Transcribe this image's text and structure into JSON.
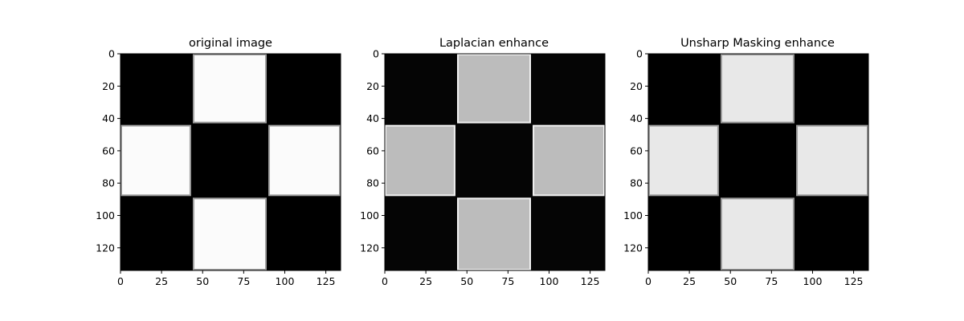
{
  "chart_data": [
    {
      "type": "heatmap",
      "title": "original image",
      "xlim": [
        0,
        134
      ],
      "ylim": [
        134,
        0
      ],
      "xticks": [
        "0",
        "25",
        "50",
        "75",
        "100",
        "125"
      ],
      "yticks": [
        "0",
        "20",
        "40",
        "60",
        "80",
        "100",
        "120"
      ],
      "xtick_values": [
        0,
        25,
        50,
        75,
        100,
        125
      ],
      "ytick_values": [
        0,
        20,
        40,
        60,
        80,
        100,
        120
      ],
      "grid": false,
      "colormap": "gray",
      "background_color": "#000000",
      "square_color": "#fbfbfb",
      "edge_color": "#a0a0a0",
      "blocks": [
        {
          "x0": 44,
          "x1": 89,
          "y0": 0,
          "y1": 43
        },
        {
          "x0": 0,
          "x1": 43,
          "y0": 44,
          "y1": 88
        },
        {
          "x0": 90,
          "x1": 134,
          "y0": 44,
          "y1": 88
        },
        {
          "x0": 44,
          "x1": 89,
          "y0": 89,
          "y1": 134
        }
      ]
    },
    {
      "type": "heatmap",
      "title": "Laplacian enhance",
      "xlim": [
        0,
        134
      ],
      "ylim": [
        134,
        0
      ],
      "xticks": [
        "0",
        "25",
        "50",
        "75",
        "100",
        "125"
      ],
      "yticks": [
        "0",
        "20",
        "40",
        "60",
        "80",
        "100",
        "120"
      ],
      "xtick_values": [
        0,
        25,
        50,
        75,
        100,
        125
      ],
      "ytick_values": [
        0,
        20,
        40,
        60,
        80,
        100,
        120
      ],
      "grid": false,
      "colormap": "gray",
      "background_color": "#050505",
      "square_color": "#bcbcbc",
      "edge_color": "#f2f2f2",
      "blocks": [
        {
          "x0": 44,
          "x1": 89,
          "y0": 0,
          "y1": 43
        },
        {
          "x0": 0,
          "x1": 43,
          "y0": 44,
          "y1": 88
        },
        {
          "x0": 90,
          "x1": 134,
          "y0": 44,
          "y1": 88
        },
        {
          "x0": 44,
          "x1": 89,
          "y0": 89,
          "y1": 134
        }
      ]
    },
    {
      "type": "heatmap",
      "title": "Unsharp Masking enhance",
      "xlim": [
        0,
        134
      ],
      "ylim": [
        134,
        0
      ],
      "xticks": [
        "0",
        "25",
        "50",
        "75",
        "100",
        "125"
      ],
      "yticks": [
        "0",
        "20",
        "40",
        "60",
        "80",
        "100",
        "120"
      ],
      "xtick_values": [
        0,
        25,
        50,
        75,
        100,
        125
      ],
      "ytick_values": [
        0,
        20,
        40,
        60,
        80,
        100,
        120
      ],
      "grid": false,
      "colormap": "gray",
      "background_color": "#000000",
      "square_color": "#e8e8e8",
      "edge_color": "#9a9a9a",
      "blocks": [
        {
          "x0": 44,
          "x1": 89,
          "y0": 0,
          "y1": 43
        },
        {
          "x0": 0,
          "x1": 43,
          "y0": 44,
          "y1": 88
        },
        {
          "x0": 90,
          "x1": 134,
          "y0": 44,
          "y1": 88
        },
        {
          "x0": 44,
          "x1": 89,
          "y0": 89,
          "y1": 134
        }
      ]
    }
  ]
}
